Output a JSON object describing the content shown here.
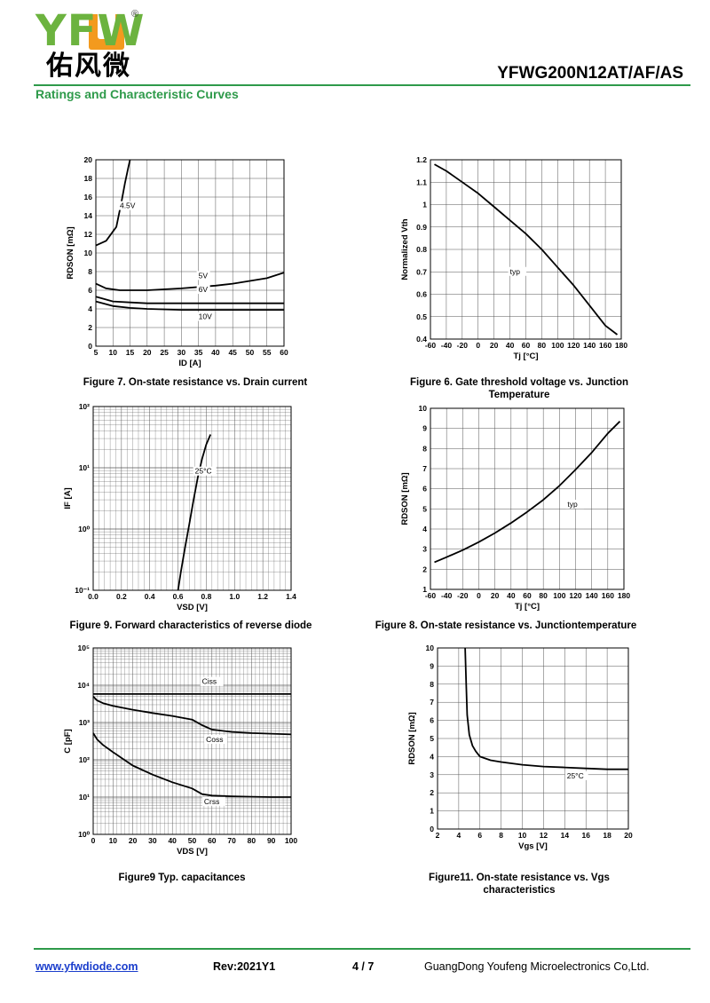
{
  "header": {
    "logo_text": "YFW",
    "logo_registered": "®",
    "logo_cn": "佑风微",
    "part_number": "YFWG200N12AT/AF/AS",
    "section_title": "Ratings and Characteristic Curves"
  },
  "colors": {
    "brand_green": "#2e9a4a",
    "logo_green": "#6cb33f",
    "logo_orange": "#f39a1e",
    "link": "#1a3dcc"
  },
  "chart_data": [
    {
      "id": "fig7",
      "type": "line",
      "caption": "Figure 7. On-state resistance vs. Drain current",
      "xlabel": "ID [A]",
      "ylabel": "RDSON [mΩ]",
      "xlim": [
        5,
        60
      ],
      "ylim": [
        0,
        20
      ],
      "xticks": [
        5,
        10,
        15,
        20,
        25,
        30,
        35,
        40,
        45,
        50,
        55,
        60
      ],
      "yticks": [
        0,
        2,
        4,
        6,
        8,
        10,
        12,
        14,
        16,
        18,
        20
      ],
      "xscale": "linear",
      "yscale": "linear",
      "grid": true,
      "series": [
        {
          "name": "4.5V",
          "label_at": [
            12,
            14.8
          ],
          "x": [
            5,
            8,
            11,
            12.5,
            13.5,
            14.5,
            15
          ],
          "y": [
            10.8,
            11.3,
            12.8,
            15.5,
            17.5,
            19.2,
            20
          ]
        },
        {
          "name": "5V",
          "label_at": [
            35,
            7.3
          ],
          "x": [
            5,
            8,
            12,
            20,
            30,
            40,
            45,
            50,
            55,
            60
          ],
          "y": [
            6.7,
            6.2,
            6.0,
            6.0,
            6.2,
            6.5,
            6.7,
            7.0,
            7.3,
            7.9
          ]
        },
        {
          "name": "6V",
          "label_at": [
            35,
            5.8
          ],
          "x": [
            5,
            10,
            15,
            20,
            30,
            40,
            50,
            60
          ],
          "y": [
            5.3,
            4.8,
            4.7,
            4.6,
            4.6,
            4.6,
            4.6,
            4.6
          ]
        },
        {
          "name": "10V",
          "label_at": [
            35,
            2.9
          ],
          "x": [
            5,
            10,
            15,
            20,
            30,
            40,
            50,
            60
          ],
          "y": [
            4.8,
            4.3,
            4.1,
            4.0,
            3.9,
            3.9,
            3.9,
            3.9
          ]
        }
      ]
    },
    {
      "id": "fig6",
      "type": "line",
      "caption": "Figure 6. Gate threshold voltage vs. Junction Temperature",
      "xlabel": "Tj [°C]",
      "ylabel": "Normalized Vth",
      "xlim": [
        -60,
        180
      ],
      "ylim": [
        0.4,
        1.2
      ],
      "xticks": [
        -60,
        -40,
        -20,
        0,
        20,
        40,
        60,
        80,
        100,
        120,
        140,
        160,
        180
      ],
      "yticks": [
        0.4,
        0.5,
        0.6,
        0.7,
        0.8,
        0.9,
        1.0,
        1.1,
        1.2
      ],
      "xscale": "linear",
      "yscale": "linear",
      "grid": true,
      "series": [
        {
          "name": "typ",
          "label_at": [
            40,
            0.69
          ],
          "x": [
            -55,
            -40,
            -20,
            0,
            20,
            40,
            60,
            80,
            100,
            120,
            140,
            160,
            175
          ],
          "y": [
            1.18,
            1.15,
            1.1,
            1.05,
            0.99,
            0.93,
            0.87,
            0.8,
            0.72,
            0.64,
            0.55,
            0.46,
            0.42
          ]
        }
      ]
    },
    {
      "id": "fig9",
      "type": "line",
      "caption": "Figure 9. Forward characteristics of reverse diode",
      "xlabel": "VSD [V]",
      "ylabel": "IF [A]",
      "xlim": [
        0,
        1.4
      ],
      "ylim": [
        0.1,
        100
      ],
      "xticks": [
        0.0,
        0.2,
        0.4,
        0.6,
        0.8,
        1.0,
        1.2,
        1.4
      ],
      "xticklabels": [
        "0.0",
        "0.2",
        "0.4",
        "0.6",
        "0.8",
        "1.0",
        "1.2",
        "1.4"
      ],
      "yticks": [
        0.1,
        1,
        10,
        100
      ],
      "yticklabels": [
        "10⁻¹",
        "10⁰",
        "10¹",
        "10²"
      ],
      "xscale": "linear",
      "yscale": "log",
      "grid": true,
      "series": [
        {
          "name": "25°C",
          "label_at": [
            0.72,
            8
          ],
          "x": [
            0.6,
            0.62,
            0.65,
            0.68,
            0.71,
            0.74,
            0.77,
            0.8,
            0.83
          ],
          "y": [
            0.1,
            0.2,
            0.5,
            1.2,
            3,
            7,
            14,
            24,
            35
          ]
        }
      ]
    },
    {
      "id": "fig8",
      "type": "line",
      "caption": "Figure 8. On-state resistance vs. Junctiontemperature",
      "xlabel": "Tj [°C]",
      "ylabel": "RDSON [mΩ]",
      "xlim": [
        -60,
        180
      ],
      "ylim": [
        1,
        10
      ],
      "xticks": [
        -60,
        -40,
        -20,
        0,
        20,
        40,
        60,
        80,
        100,
        120,
        140,
        160,
        180
      ],
      "yticks": [
        1,
        2,
        3,
        4,
        5,
        6,
        7,
        8,
        9,
        10
      ],
      "xscale": "linear",
      "yscale": "linear",
      "grid": true,
      "series": [
        {
          "name": "typ",
          "label_at": [
            110,
            5.1
          ],
          "x": [
            -55,
            -40,
            -20,
            0,
            20,
            40,
            60,
            80,
            100,
            120,
            140,
            160,
            175
          ],
          "y": [
            2.35,
            2.6,
            2.95,
            3.35,
            3.8,
            4.3,
            4.85,
            5.45,
            6.15,
            6.95,
            7.8,
            8.75,
            9.35
          ]
        }
      ]
    },
    {
      "id": "fig10",
      "type": "line",
      "caption": "Figure9 Typ. capacitances",
      "xlabel": "VDS [V]",
      "ylabel": "C [pF]",
      "xlim": [
        0,
        100
      ],
      "ylim": [
        1,
        100000
      ],
      "xticks": [
        0,
        10,
        20,
        30,
        40,
        50,
        60,
        70,
        80,
        90,
        100
      ],
      "yticks": [
        1,
        10,
        100,
        1000,
        10000,
        100000
      ],
      "yticklabels": [
        "10⁰",
        "10¹",
        "10²",
        "10³",
        "10⁴",
        "10⁵"
      ],
      "xscale": "linear",
      "yscale": "log",
      "grid": true,
      "series": [
        {
          "name": "Ciss",
          "label_at": [
            55,
            10800
          ],
          "x": [
            0,
            20,
            40,
            60,
            80,
            100
          ],
          "y": [
            5800,
            5800,
            5800,
            5800,
            5800,
            5800
          ]
        },
        {
          "name": "Coss",
          "label_at": [
            57,
            300
          ],
          "x": [
            0,
            2,
            5,
            10,
            20,
            30,
            40,
            50,
            55,
            60,
            70,
            80,
            90,
            100
          ],
          "y": [
            5000,
            3900,
            3300,
            2800,
            2200,
            1800,
            1500,
            1200,
            850,
            650,
            560,
            520,
            500,
            480
          ]
        },
        {
          "name": "Crss",
          "label_at": [
            56,
            6.5
          ],
          "x": [
            0,
            2,
            5,
            10,
            20,
            30,
            40,
            50,
            55,
            60,
            70,
            80,
            90,
            100
          ],
          "y": [
            520,
            350,
            250,
            160,
            70,
            40,
            25,
            17,
            12,
            11,
            10.5,
            10.2,
            10,
            10
          ]
        }
      ]
    },
    {
      "id": "fig11",
      "type": "line",
      "caption": "Figure11. On-state resistance vs. Vgs characteristics",
      "xlabel": "Vgs [V]",
      "ylabel": "RDSON [mΩ]",
      "xlim": [
        2,
        20
      ],
      "ylim": [
        0,
        10
      ],
      "xticks": [
        2,
        4,
        6,
        8,
        10,
        12,
        14,
        16,
        18,
        20
      ],
      "yticks": [
        0,
        1,
        2,
        3,
        4,
        5,
        6,
        7,
        8,
        9,
        10
      ],
      "xscale": "linear",
      "yscale": "linear",
      "grid": true,
      "series": [
        {
          "name": "25°C",
          "label_at": [
            14.2,
            2.8
          ],
          "x": [
            4.6,
            4.7,
            4.8,
            5.0,
            5.3,
            5.6,
            6.0,
            7.0,
            8.0,
            10.0,
            12.0,
            14.0,
            16.0,
            18.0,
            20.0
          ],
          "y": [
            10,
            8.0,
            6.3,
            5.2,
            4.6,
            4.3,
            4.0,
            3.8,
            3.7,
            3.55,
            3.45,
            3.4,
            3.35,
            3.3,
            3.3
          ]
        }
      ]
    }
  ],
  "footer": {
    "website": "www.yfwdiode.com",
    "revision": "Rev:2021Y1",
    "page": "4 / 7",
    "company": "GuangDong Youfeng Microelectronics Co,Ltd."
  }
}
